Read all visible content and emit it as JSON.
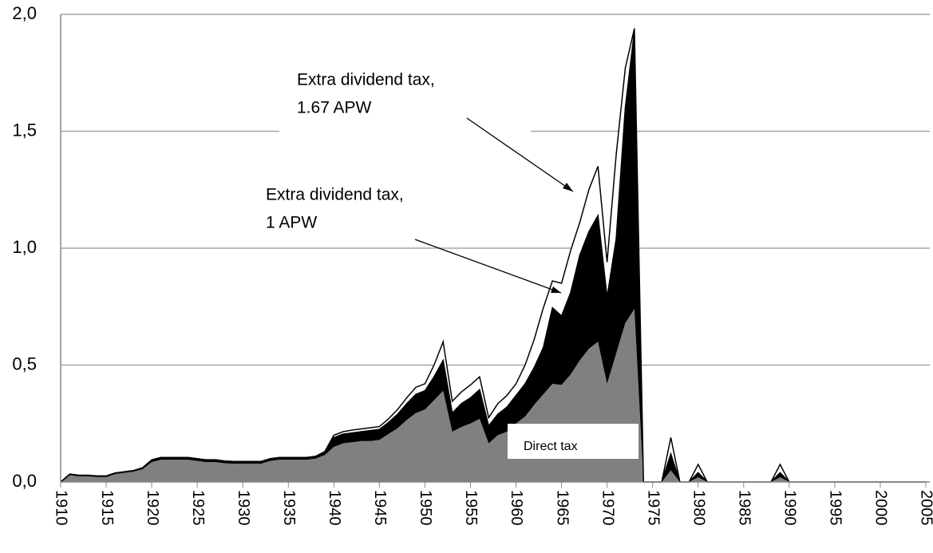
{
  "chart_data": {
    "type": "stacked_area",
    "x": [
      1910,
      1911,
      1912,
      1913,
      1914,
      1915,
      1916,
      1917,
      1918,
      1919,
      1920,
      1921,
      1922,
      1923,
      1924,
      1925,
      1926,
      1927,
      1928,
      1929,
      1930,
      1931,
      1932,
      1933,
      1934,
      1935,
      1936,
      1937,
      1938,
      1939,
      1940,
      1941,
      1942,
      1943,
      1944,
      1945,
      1946,
      1947,
      1948,
      1949,
      1950,
      1951,
      1952,
      1953,
      1954,
      1955,
      1956,
      1957,
      1958,
      1959,
      1960,
      1961,
      1962,
      1963,
      1964,
      1965,
      1966,
      1967,
      1968,
      1969,
      1970,
      1971,
      1972,
      1973,
      1974,
      1975,
      1976,
      1977,
      1978,
      1979,
      1980,
      1981,
      1982,
      1983,
      1984,
      1985,
      1986,
      1987,
      1988,
      1989,
      1990,
      1991,
      1992,
      1993,
      1994,
      1995,
      1996,
      1997,
      1998,
      1999,
      2000,
      2001,
      2002,
      2003,
      2004,
      2005
    ],
    "series": [
      {
        "name": "Direct tax",
        "color": "#808080",
        "values": [
          0,
          0.03,
          0.025,
          0.025,
          0.022,
          0.022,
          0.035,
          0.04,
          0.045,
          0.055,
          0.085,
          0.095,
          0.095,
          0.095,
          0.095,
          0.09,
          0.085,
          0.085,
          0.08,
          0.078,
          0.078,
          0.078,
          0.078,
          0.09,
          0.095,
          0.095,
          0.095,
          0.095,
          0.1,
          0.115,
          0.15,
          0.165,
          0.17,
          0.175,
          0.175,
          0.18,
          0.205,
          0.23,
          0.265,
          0.295,
          0.31,
          0.35,
          0.39,
          0.215,
          0.235,
          0.25,
          0.27,
          0.165,
          0.2,
          0.215,
          0.25,
          0.28,
          0.33,
          0.375,
          0.42,
          0.415,
          0.46,
          0.52,
          0.57,
          0.6,
          0.42,
          0.55,
          0.68,
          0.74,
          0,
          0,
          0,
          0.05,
          0,
          0,
          0.02,
          0,
          0,
          0,
          0,
          0,
          0,
          0,
          0,
          0.02,
          0,
          0,
          0,
          0,
          0,
          0,
          0,
          0,
          0,
          0,
          0,
          0,
          0,
          0,
          0,
          0
        ]
      },
      {
        "color": "#000000",
        "values": [
          0,
          0.002,
          0.002,
          0.002,
          0.002,
          0.002,
          0.002,
          0.002,
          0.002,
          0.003,
          0.005,
          0.005,
          0.005,
          0.005,
          0.005,
          0.005,
          0.005,
          0.005,
          0.005,
          0.005,
          0.005,
          0.005,
          0.005,
          0.005,
          0.005,
          0.005,
          0.005,
          0.005,
          0.005,
          0.01,
          0.04,
          0.04,
          0.04,
          0.04,
          0.045,
          0.045,
          0.05,
          0.06,
          0.07,
          0.08,
          0.08,
          0.1,
          0.13,
          0.08,
          0.1,
          0.11,
          0.125,
          0.075,
          0.09,
          0.105,
          0.12,
          0.14,
          0.16,
          0.2,
          0.325,
          0.295,
          0.35,
          0.45,
          0.5,
          0.54,
          0.37,
          0.49,
          0.92,
          1.19,
          0,
          0,
          0,
          0.07,
          0,
          0,
          0.02,
          0,
          0,
          0,
          0,
          0,
          0,
          0,
          0,
          0.02,
          0,
          0,
          0,
          0,
          0,
          0,
          0,
          0,
          0,
          0,
          0,
          0,
          0,
          0,
          0,
          0
        ]
      },
      {
        "color": "#ffffff",
        "values": [
          0,
          0.002,
          0.002,
          0.002,
          0.002,
          0.002,
          0.002,
          0.002,
          0.002,
          0.003,
          0.005,
          0.005,
          0.005,
          0.005,
          0.005,
          0.005,
          0.005,
          0.005,
          0.005,
          0.005,
          0.005,
          0.005,
          0.005,
          0.005,
          0.005,
          0.005,
          0.005,
          0.005,
          0.005,
          0.005,
          0.01,
          0.01,
          0.012,
          0.012,
          0.012,
          0.012,
          0.015,
          0.02,
          0.025,
          0.03,
          0.03,
          0.05,
          0.08,
          0.05,
          0.05,
          0.055,
          0.055,
          0.035,
          0.045,
          0.05,
          0.05,
          0.08,
          0.12,
          0.17,
          0.115,
          0.14,
          0.18,
          0.14,
          0.18,
          0.21,
          0.15,
          0.36,
          0.17,
          0.01,
          0,
          0,
          0,
          0.07,
          0,
          0,
          0.035,
          0,
          0,
          0,
          0,
          0,
          0,
          0,
          0,
          0.035,
          0,
          0,
          0,
          0,
          0,
          0,
          0,
          0,
          0,
          0,
          0,
          0,
          0,
          0,
          0,
          0
        ]
      }
    ],
    "annotations": [
      [
        "Extra dividend tax,",
        "1.67 APW"
      ],
      [
        "Extra dividend tax,",
        " 1 APW"
      ]
    ],
    "xlim": [
      1910,
      2005
    ],
    "xticks": [
      1910,
      1915,
      1920,
      1925,
      1930,
      1935,
      1940,
      1945,
      1950,
      1955,
      1960,
      1965,
      1970,
      1975,
      1980,
      1985,
      1990,
      1995,
      2000,
      2005
    ],
    "ylim": [
      0,
      2
    ],
    "yticks": [
      {
        "value": 0,
        "label": "0,0"
      },
      {
        "value": 0.5,
        "label": "0,5"
      },
      {
        "value": 1,
        "label": "1,0"
      },
      {
        "value": 1.5,
        "label": "1,5"
      },
      {
        "value": 2,
        "label": "2,0"
      }
    ],
    "grid": true
  }
}
